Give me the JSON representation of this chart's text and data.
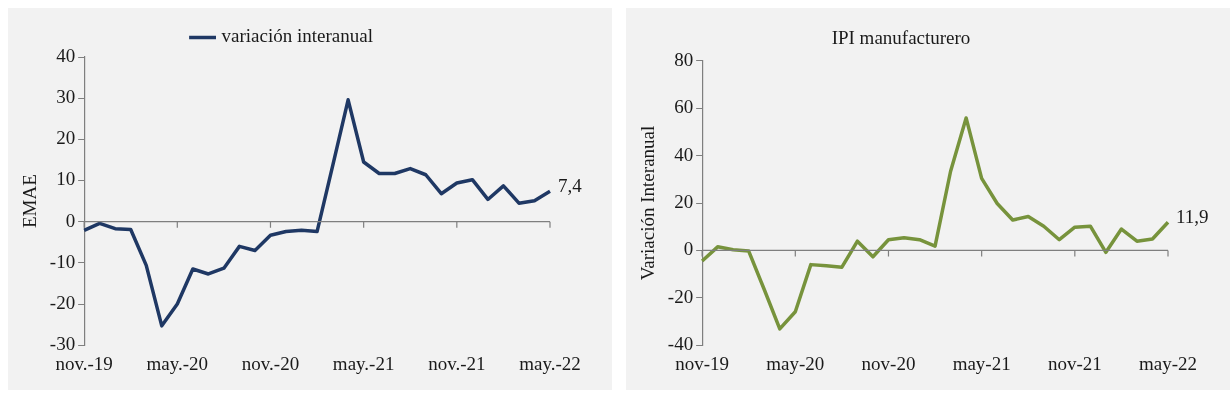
{
  "chart_data": [
    {
      "type": "line",
      "ylabel": "EMAE",
      "legend": "top",
      "categories": [
        "nov.-19",
        null,
        null,
        null,
        null,
        null,
        "may.-20",
        null,
        null,
        null,
        null,
        null,
        "nov.-20",
        null,
        null,
        null,
        null,
        null,
        "may.-21",
        null,
        null,
        null,
        null,
        null,
        "nov.-21",
        null,
        null,
        null,
        null,
        null,
        "may.-22"
      ],
      "series": [
        {
          "name": "variación interanual",
          "color": "#1f3864",
          "values": [
            -2.1,
            -0.4,
            -1.7,
            -1.9,
            -10.6,
            -25.3,
            -20.0,
            -11.5,
            -12.7,
            -11.3,
            -6.0,
            -7.0,
            -3.3,
            -2.4,
            -2.1,
            -2.4,
            13.5,
            29.6,
            14.5,
            11.7,
            11.7,
            12.9,
            11.4,
            6.8,
            9.4,
            10.2,
            5.4,
            8.7,
            4.5,
            5.1,
            7.4
          ]
        }
      ],
      "ylim": [
        -30,
        40
      ],
      "yticks": [
        -30,
        -20,
        -10,
        0,
        10,
        20,
        30,
        40
      ],
      "marker": "none",
      "annotations": [
        {
          "text": "7,4",
          "x": "may.-22",
          "y": 7.4
        }
      ]
    },
    {
      "type": "line",
      "title": "IPI manufacturero",
      "ylabel": "Variación Interanual",
      "categories": [
        "nov-19",
        null,
        null,
        null,
        null,
        null,
        "may-20",
        null,
        null,
        null,
        null,
        null,
        "nov-20",
        null,
        null,
        null,
        null,
        null,
        "may-21",
        null,
        null,
        null,
        null,
        null,
        "nov-21",
        null,
        null,
        null,
        null,
        null,
        "may-22"
      ],
      "series": [
        {
          "color": "#77933c",
          "values": [
            -4.5,
            1.5,
            0.3,
            -0.3,
            -16.5,
            -33.1,
            -25.9,
            -6.0,
            -6.5,
            -7.1,
            3.9,
            -2.7,
            4.5,
            5.3,
            4.5,
            1.8,
            33.4,
            55.9,
            30.4,
            19.8,
            12.8,
            14.3,
            10.2,
            4.5,
            9.8,
            10.2,
            -0.8,
            9.0,
            3.9,
            4.8,
            11.9
          ]
        }
      ],
      "ylim": [
        -40,
        80
      ],
      "yticks": [
        -40,
        -20,
        0,
        20,
        40,
        60,
        80
      ],
      "marker": "none",
      "annotations": [
        {
          "text": "11,9",
          "x": "may-22",
          "y": 11.9
        }
      ]
    }
  ]
}
